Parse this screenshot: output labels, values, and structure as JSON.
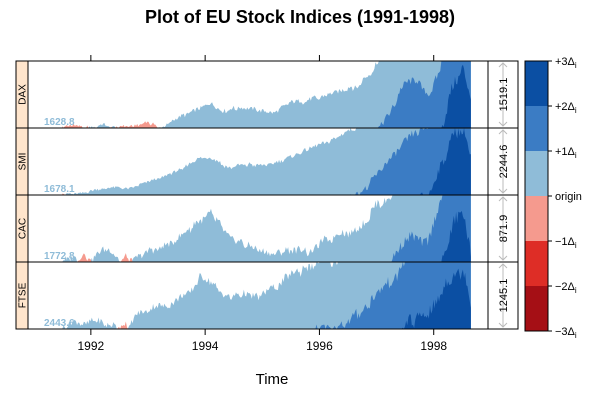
{
  "chart_data": {
    "type": "area",
    "variant": "horizon",
    "title": "Plot of EU Stock Indices (1991-1998)",
    "xlabel": "Time",
    "xlim": [
      1990.9,
      1998.95
    ],
    "x_ticks": [
      "1992",
      "1994",
      "1996",
      "1998"
    ],
    "x_tick_values": [
      1992,
      1994,
      1996,
      1998
    ],
    "x_start": 1991.5,
    "x_end": 1998.65,
    "bands": {
      "colors": [
        "#a50f15",
        "#de2d26",
        "#f59a8e",
        "#8fbcd8",
        "#3b7cc4",
        "#0b4fa3"
      ],
      "labels": [
        "−3Δ",
        "−2Δ",
        "−1Δ",
        "origin",
        "+1Δ",
        "+2Δ",
        "+3Δ"
      ],
      "label_subscript": "i",
      "origin_label": "origin"
    },
    "series": [
      {
        "name": "DAX",
        "origin": "1628.8",
        "scale": "1519.1",
        "origin_value": 1628.8,
        "scale_value": 1519.1,
        "knots": [
          [
            1991.5,
            1628
          ],
          [
            1991.7,
            1550
          ],
          [
            1991.9,
            1600
          ],
          [
            1992.2,
            1700
          ],
          [
            1992.4,
            1630
          ],
          [
            1992.6,
            1580
          ],
          [
            1992.8,
            1560
          ],
          [
            1993.0,
            1480
          ],
          [
            1993.3,
            1700
          ],
          [
            1993.6,
            1900
          ],
          [
            1993.9,
            2100
          ],
          [
            1994.1,
            2200
          ],
          [
            1994.3,
            2000
          ],
          [
            1994.6,
            2100
          ],
          [
            1994.9,
            2050
          ],
          [
            1995.2,
            2000
          ],
          [
            1995.5,
            2200
          ],
          [
            1995.8,
            2250
          ],
          [
            1996.1,
            2350
          ],
          [
            1996.4,
            2500
          ],
          [
            1996.7,
            2600
          ],
          [
            1996.9,
            2900
          ],
          [
            1997.2,
            3400
          ],
          [
            1997.5,
            4200
          ],
          [
            1997.7,
            4300
          ],
          [
            1997.9,
            3900
          ],
          [
            1998.1,
            4400
          ],
          [
            1998.35,
            5700
          ],
          [
            1998.5,
            6000
          ],
          [
            1998.65,
            5300
          ]
        ]
      },
      {
        "name": "SMI",
        "origin": "1678.1",
        "scale": "2244.6",
        "origin_value": 1678.1,
        "scale_value": 2244.6,
        "knots": [
          [
            1991.5,
            1678
          ],
          [
            1991.8,
            1750
          ],
          [
            1992.1,
            1850
          ],
          [
            1992.4,
            1950
          ],
          [
            1992.7,
            1900
          ],
          [
            1993.0,
            2100
          ],
          [
            1993.3,
            2300
          ],
          [
            1993.6,
            2550
          ],
          [
            1993.9,
            2900
          ],
          [
            1994.1,
            2950
          ],
          [
            1994.4,
            2600
          ],
          [
            1994.7,
            2700
          ],
          [
            1995.0,
            2650
          ],
          [
            1995.3,
            2800
          ],
          [
            1995.6,
            3000
          ],
          [
            1995.9,
            3300
          ],
          [
            1996.2,
            3500
          ],
          [
            1996.5,
            3800
          ],
          [
            1996.8,
            4100
          ],
          [
            1997.0,
            4600
          ],
          [
            1997.3,
            5300
          ],
          [
            1997.6,
            6000
          ],
          [
            1997.9,
            6200
          ],
          [
            1998.1,
            7000
          ],
          [
            1998.35,
            8200
          ],
          [
            1998.55,
            8400
          ],
          [
            1998.65,
            7400
          ]
        ]
      },
      {
        "name": "CAC",
        "origin": "1772.8",
        "scale": "871.9",
        "origin_value": 1772.8,
        "scale_value": 871.9,
        "knots": [
          [
            1991.5,
            1772
          ],
          [
            1991.7,
            1850
          ],
          [
            1991.9,
            1700
          ],
          [
            1992.2,
            1950
          ],
          [
            1992.4,
            1900
          ],
          [
            1992.6,
            1650
          ],
          [
            1992.8,
            1850
          ],
          [
            1993.1,
            1950
          ],
          [
            1993.4,
            2000
          ],
          [
            1993.7,
            2200
          ],
          [
            1993.9,
            2300
          ],
          [
            1994.1,
            2400
          ],
          [
            1994.4,
            2100
          ],
          [
            1994.7,
            2000
          ],
          [
            1995.0,
            1900
          ],
          [
            1995.2,
            1850
          ],
          [
            1995.5,
            1950
          ],
          [
            1995.8,
            1900
          ],
          [
            1996.1,
            2050
          ],
          [
            1996.4,
            2150
          ],
          [
            1996.7,
            2200
          ],
          [
            1997.0,
            2500
          ],
          [
            1997.3,
            2700
          ],
          [
            1997.6,
            3000
          ],
          [
            1997.9,
            2900
          ],
          [
            1998.1,
            3400
          ],
          [
            1998.35,
            4000
          ],
          [
            1998.5,
            4200
          ],
          [
            1998.65,
            3600
          ]
        ]
      },
      {
        "name": "FTSE",
        "origin": "2443.6",
        "scale": "1245.1",
        "origin_value": 2443.6,
        "scale_value": 1245.1,
        "knots": [
          [
            1991.5,
            2443
          ],
          [
            1991.7,
            2550
          ],
          [
            1991.9,
            2550
          ],
          [
            1992.1,
            2600
          ],
          [
            1992.4,
            2500
          ],
          [
            1992.6,
            2350
          ],
          [
            1992.8,
            2700
          ],
          [
            1993.1,
            2850
          ],
          [
            1993.4,
            2900
          ],
          [
            1993.7,
            3100
          ],
          [
            1993.9,
            3400
          ],
          [
            1994.1,
            3300
          ],
          [
            1994.4,
            3000
          ],
          [
            1994.7,
            3100
          ],
          [
            1995.0,
            3050
          ],
          [
            1995.3,
            3300
          ],
          [
            1995.6,
            3500
          ],
          [
            1995.9,
            3650
          ],
          [
            1996.2,
            3700
          ],
          [
            1996.5,
            3800
          ],
          [
            1996.8,
            4100
          ],
          [
            1997.0,
            4300
          ],
          [
            1997.3,
            4600
          ],
          [
            1997.6,
            5100
          ],
          [
            1997.9,
            5200
          ],
          [
            1998.1,
            5600
          ],
          [
            1998.35,
            5900
          ],
          [
            1998.55,
            6000
          ],
          [
            1998.65,
            5400
          ]
        ]
      }
    ]
  }
}
